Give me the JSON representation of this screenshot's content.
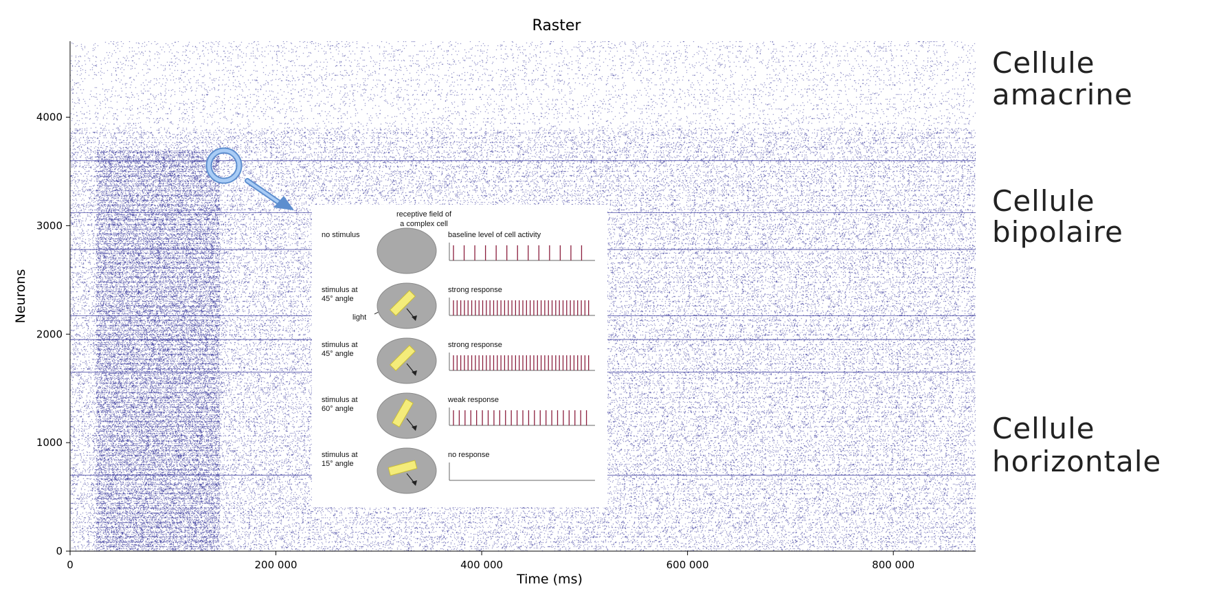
{
  "chart_data": {
    "type": "scatter",
    "title": "Raster",
    "xlabel": "Time (ms)",
    "ylabel": "Neurons",
    "xlim": [
      0,
      880000
    ],
    "ylim": [
      0,
      4700
    ],
    "xticks": [
      0,
      200000,
      400000,
      600000,
      800000
    ],
    "xtick_labels": [
      "0",
      "200 000",
      "400 000",
      "600 000",
      "800 000"
    ],
    "yticks": [
      0,
      1000,
      2000,
      3000,
      4000
    ],
    "ytick_labels": [
      "0",
      "1000",
      "2000",
      "3000",
      "4000"
    ],
    "grid": false,
    "marker_color": "#1a1a8c",
    "dense_stimulus_window": [
      25000,
      145000
    ],
    "annotations": [
      {
        "text_lines": [
          "Cellule",
          "amacrine"
        ],
        "neuron_band": [
          4000,
          4700
        ]
      },
      {
        "text_lines": [
          "Cellule",
          "bipolaire"
        ],
        "neuron_band": [
          2800,
          3600
        ]
      },
      {
        "text_lines": [
          "Cellule",
          "horizontale"
        ],
        "neuron_band": [
          600,
          1200
        ]
      }
    ]
  },
  "inset": {
    "title_lines": [
      "receptive field of",
      "a complex cell"
    ],
    "rows": [
      {
        "condition_lines": [
          "no stimulus"
        ],
        "response": "baseline level of cell activity",
        "spike_count": 13,
        "bar_angle": null,
        "extra_label": ""
      },
      {
        "condition_lines": [
          "stimulus at",
          "45° angle"
        ],
        "response": "strong response",
        "spike_count": 38,
        "bar_angle": -45,
        "extra_label": "light"
      },
      {
        "condition_lines": [
          "stimulus at",
          "45° angle"
        ],
        "response": "strong response",
        "spike_count": 38,
        "bar_angle": -45,
        "extra_label": ""
      },
      {
        "condition_lines": [
          "stimulus at",
          "60° angle"
        ],
        "response": "weak response",
        "spike_count": 24,
        "bar_angle": -60,
        "extra_label": ""
      },
      {
        "condition_lines": [
          "stimulus at",
          "15° angle"
        ],
        "response": "no response",
        "spike_count": 0,
        "bar_angle": -15,
        "extra_label": ""
      }
    ]
  }
}
